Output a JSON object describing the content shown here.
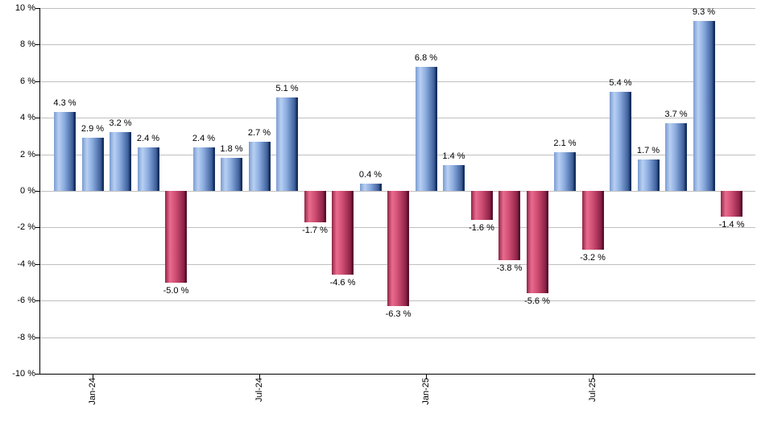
{
  "chart_data": {
    "type": "bar",
    "title": "",
    "xlabel": "",
    "ylabel": "",
    "ylim": [
      -10,
      10
    ],
    "grid": true,
    "values": [
      4.3,
      2.9,
      3.2,
      2.4,
      -5.0,
      2.4,
      1.8,
      2.7,
      5.1,
      -1.7,
      -4.6,
      0.4,
      -6.3,
      6.8,
      1.4,
      -1.6,
      -3.8,
      -5.6,
      2.1,
      -3.2,
      5.4,
      1.7,
      3.7,
      9.3,
      -1.4
    ],
    "bar_label_suffix": " %",
    "y_ticks": [
      {
        "value": 10,
        "label": "10 %"
      },
      {
        "value": 8,
        "label": "8 %"
      },
      {
        "value": 6,
        "label": "6 %"
      },
      {
        "value": 4,
        "label": "4 %"
      },
      {
        "value": 2,
        "label": "2 %"
      },
      {
        "value": 0,
        "label": "0 %"
      },
      {
        "value": -2,
        "label": "-2 %"
      },
      {
        "value": -4,
        "label": "-4 %"
      },
      {
        "value": -6,
        "label": "-6 %"
      },
      {
        "value": -8,
        "label": "-8 %"
      },
      {
        "value": -10,
        "label": "-10 %"
      }
    ],
    "x_ticks": [
      {
        "bar_index": 1,
        "label": "Jan-24"
      },
      {
        "bar_index": 7,
        "label": "Jul-24"
      },
      {
        "bar_index": 13,
        "label": "Jan-25"
      },
      {
        "bar_index": 19,
        "label": "Jul-25"
      }
    ],
    "colors": {
      "background": "#ffffff",
      "gridline": "#c0c0c0",
      "axis": "#000000",
      "text": "#000000",
      "positive": {
        "start": "#7b9cd2",
        "light": "#b8d0f2",
        "mid": "#8aabdf",
        "dark": "#3c5e99",
        "edge": "#17315e"
      },
      "negative": {
        "start": "#8f2546",
        "light": "#e96b8e",
        "mid": "#cf4f74",
        "dark": "#8e2246",
        "edge": "#5a1130"
      }
    }
  }
}
